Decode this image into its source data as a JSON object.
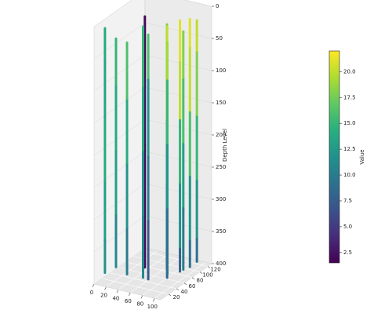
{
  "chart_data": {
    "type": "wells3d",
    "zlabel": "Depth Level",
    "colorbar_label": "Value",
    "xlim": [
      0,
      110
    ],
    "ylim": [
      0,
      130
    ],
    "zlim": [
      400,
      0
    ],
    "xticks": [
      0,
      20,
      40,
      60,
      80,
      100
    ],
    "yticks": [
      20,
      40,
      60,
      80,
      100,
      120
    ],
    "zticks": [
      0,
      50,
      100,
      150,
      200,
      250,
      300,
      350,
      400
    ],
    "clim": [
      1.5,
      22
    ],
    "cticks": [
      {
        "value": 2.5,
        "label": "2.5"
      },
      {
        "value": 5,
        "label": "5.0"
      },
      {
        "value": 7.5,
        "label": "7.5"
      },
      {
        "value": 10,
        "label": "10.0"
      },
      {
        "value": 12.5,
        "label": "12.5"
      },
      {
        "value": 15,
        "label": "15.0"
      },
      {
        "value": 17.5,
        "label": "17.5"
      },
      {
        "value": 20,
        "label": "20.0"
      }
    ],
    "colormap": [
      "#440154",
      "#472d7b",
      "#3b528b",
      "#2c728e",
      "#21918c",
      "#28ae80",
      "#5ec962",
      "#addc30",
      "#fde725"
    ],
    "wells": [
      {
        "x": 5,
        "y": 20,
        "depths": [
          10,
          60,
          150,
          250,
          340,
          390
        ],
        "values": [
          14,
          13.5,
          14,
          13,
          12,
          9
        ]
      },
      {
        "x": 20,
        "y": 25,
        "depths": [
          25,
          100,
          200,
          300,
          380
        ],
        "values": [
          15,
          14,
          13,
          11,
          10
        ]
      },
      {
        "x": 35,
        "y": 30,
        "depths": [
          30,
          120,
          220,
          320,
          390
        ],
        "values": [
          16,
          14,
          12,
          10,
          8
        ]
      },
      {
        "x": 45,
        "y": 60,
        "depths": [
          0,
          40,
          100,
          200,
          300,
          390
        ],
        "values": [
          2,
          2,
          2.5,
          2,
          2,
          2
        ]
      },
      {
        "x": 55,
        "y": 40,
        "depths": [
          5,
          100,
          200,
          300,
          395
        ],
        "values": [
          15,
          14,
          12,
          11,
          10
        ]
      },
      {
        "x": 70,
        "y": 30,
        "depths": [
          10,
          80,
          200,
          300,
          390
        ],
        "values": [
          16,
          12,
          10,
          7,
          5
        ]
      },
      {
        "x": 75,
        "y": 70,
        "depths": [
          10,
          100,
          200,
          300,
          390
        ],
        "values": [
          18,
          17,
          14,
          10,
          7
        ]
      },
      {
        "x": 85,
        "y": 55,
        "depths": [
          5,
          60,
          150,
          250,
          350,
          395
        ],
        "values": [
          20,
          19,
          14,
          11,
          8,
          5
        ]
      },
      {
        "x": 90,
        "y": 80,
        "depths": [
          5,
          70,
          160,
          260,
          360,
          395
        ],
        "values": [
          21,
          20,
          15,
          12,
          8,
          4
        ]
      },
      {
        "x": 95,
        "y": 40,
        "depths": [
          20,
          80,
          180,
          280,
          380
        ],
        "values": [
          19,
          15,
          12,
          9,
          6
        ]
      },
      {
        "x": 100,
        "y": 90,
        "depths": [
          5,
          50,
          150,
          250,
          350,
          390
        ],
        "values": [
          21,
          20,
          16,
          12,
          9,
          6
        ]
      },
      {
        "x": 105,
        "y": 100,
        "depths": [
          10,
          60,
          160,
          260,
          350,
          385
        ],
        "values": [
          20,
          18,
          15,
          12,
          9,
          7
        ]
      },
      {
        "x": 102,
        "y": 70,
        "depths": [
          15,
          90,
          190,
          290,
          385
        ],
        "values": [
          18,
          16,
          13,
          10,
          6
        ]
      }
    ]
  }
}
